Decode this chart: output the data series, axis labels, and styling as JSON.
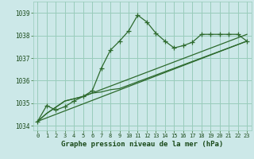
{
  "background_color": "#cce8e8",
  "grid_color": "#99ccbb",
  "line_color": "#2d6a2d",
  "title": "Graphe pression niveau de la mer (hPa)",
  "xlim": [
    -0.5,
    23.5
  ],
  "ylim": [
    1033.8,
    1039.5
  ],
  "yticks": [
    1034,
    1035,
    1036,
    1037,
    1038,
    1039
  ],
  "xticks": [
    0,
    1,
    2,
    3,
    4,
    5,
    6,
    7,
    8,
    9,
    10,
    11,
    12,
    13,
    14,
    15,
    16,
    17,
    18,
    19,
    20,
    21,
    22,
    23
  ],
  "series1_x": [
    0,
    1,
    2,
    3,
    4,
    5,
    6,
    7,
    8,
    9,
    10,
    11,
    12,
    13,
    14,
    15,
    16,
    17,
    18,
    19,
    20,
    21,
    22,
    23
  ],
  "series1_y": [
    1034.2,
    1034.9,
    1034.7,
    1034.85,
    1035.1,
    1035.3,
    1035.55,
    1036.55,
    1037.35,
    1037.75,
    1038.2,
    1038.9,
    1038.6,
    1038.1,
    1037.75,
    1037.45,
    1037.55,
    1037.7,
    1038.05,
    1038.05,
    1038.05,
    1038.05,
    1038.05,
    1037.75
  ],
  "series2_x": [
    0,
    1,
    3,
    4,
    5,
    6,
    7,
    8,
    9,
    10,
    11,
    12,
    13,
    14,
    15,
    16,
    17,
    18,
    19,
    20,
    21,
    22,
    23
  ],
  "series2_y": [
    1034.2,
    1034.55,
    1035.1,
    1035.2,
    1035.3,
    1035.45,
    1035.5,
    1035.6,
    1035.65,
    1035.8,
    1035.95,
    1036.1,
    1036.25,
    1036.4,
    1036.55,
    1036.7,
    1036.85,
    1037.0,
    1037.15,
    1037.3,
    1037.45,
    1037.6,
    1037.75
  ],
  "series3_x": [
    0,
    23
  ],
  "series3_y": [
    1034.2,
    1037.75
  ],
  "series4_x": [
    0,
    1,
    3,
    4,
    5,
    23
  ],
  "series4_y": [
    1034.2,
    1034.55,
    1035.1,
    1035.2,
    1035.3,
    1038.05
  ]
}
